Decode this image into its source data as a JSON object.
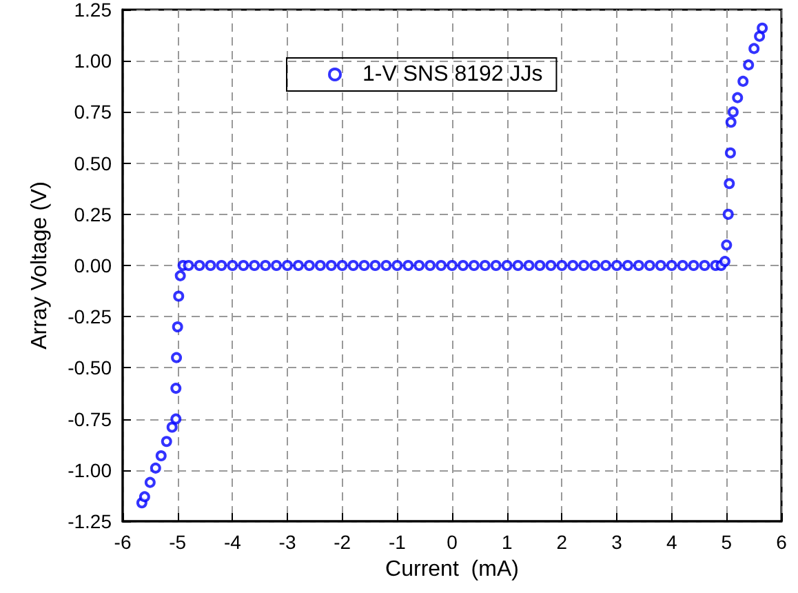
{
  "chart_data": {
    "type": "scatter",
    "xlabel": "Current  (mA)",
    "ylabel": "Array Voltage (V)",
    "marker": "circle",
    "grid": true,
    "legend": "top",
    "xlim": [
      -6,
      6
    ],
    "xticks": [
      -6,
      -5,
      -4,
      -3,
      -2,
      -1,
      0,
      1,
      2,
      3,
      4,
      5,
      6
    ],
    "ylim": [
      -1.25,
      1.25
    ],
    "yticks": [
      -1.25,
      {
        "value": -1,
        "label": "-1.00"
      },
      -0.75,
      {
        "value": -0.5,
        "label": "-0.50"
      },
      -0.25,
      {
        "value": 0,
        "label": "0.00"
      },
      0.25,
      {
        "value": 0.5,
        "label": "0.50"
      },
      0.75,
      {
        "value": 1,
        "label": "1.00"
      },
      1.25
    ],
    "series": [
      {
        "name": "1-V SNS 8192 JJs",
        "color": "#0000ff",
        "x": [
          -5.65,
          -5.6,
          -5.5,
          -5.4,
          -5.3,
          -5.2,
          -5.1,
          -5.03,
          -5.03,
          -5.02,
          -5.0,
          -4.98,
          -4.95,
          -4.9,
          -4.8,
          -4.6,
          -4.4,
          -4.2,
          -4,
          -3.8,
          -3.6,
          -3.4,
          -3.2,
          -3,
          -2.8,
          -2.6,
          -2.4,
          -2.2,
          -2,
          -1.8,
          -1.6,
          -1.4,
          -1.2,
          -1,
          -0.8,
          -0.6,
          -0.4,
          -0.2,
          0,
          0.2,
          0.4,
          0.6,
          0.8,
          1,
          1.2,
          1.4,
          1.6,
          1.8,
          2,
          2.2,
          2.4,
          2.6,
          2.8,
          3,
          3.2,
          3.4,
          3.6,
          3.8,
          4,
          4.2,
          4.4,
          4.6,
          4.8,
          4.9,
          4.97,
          5.0,
          5.03,
          5.05,
          5.07,
          5.08,
          5.12,
          5.2,
          5.3,
          5.4,
          5.5,
          5.6,
          5.65
        ],
        "values": [
          -1.16,
          -1.13,
          -1.06,
          -0.99,
          -0.93,
          -0.86,
          -0.79,
          -0.75,
          -0.6,
          -0.45,
          -0.3,
          -0.15,
          -0.05,
          0,
          0,
          0,
          0,
          0,
          0,
          0,
          0,
          0,
          0,
          0,
          0,
          0,
          0,
          0,
          0,
          0,
          0,
          0,
          0,
          0,
          0,
          0,
          0,
          0,
          0,
          0,
          0,
          0,
          0,
          0,
          0,
          0,
          0,
          0,
          0,
          0,
          0,
          0,
          0,
          0,
          0,
          0,
          0,
          0,
          0,
          0,
          0,
          0,
          0,
          0,
          0.02,
          0.1,
          0.25,
          0.4,
          0.55,
          0.7,
          0.75,
          0.82,
          0.9,
          0.98,
          1.06,
          1.12,
          1.16
        ]
      }
    ]
  }
}
